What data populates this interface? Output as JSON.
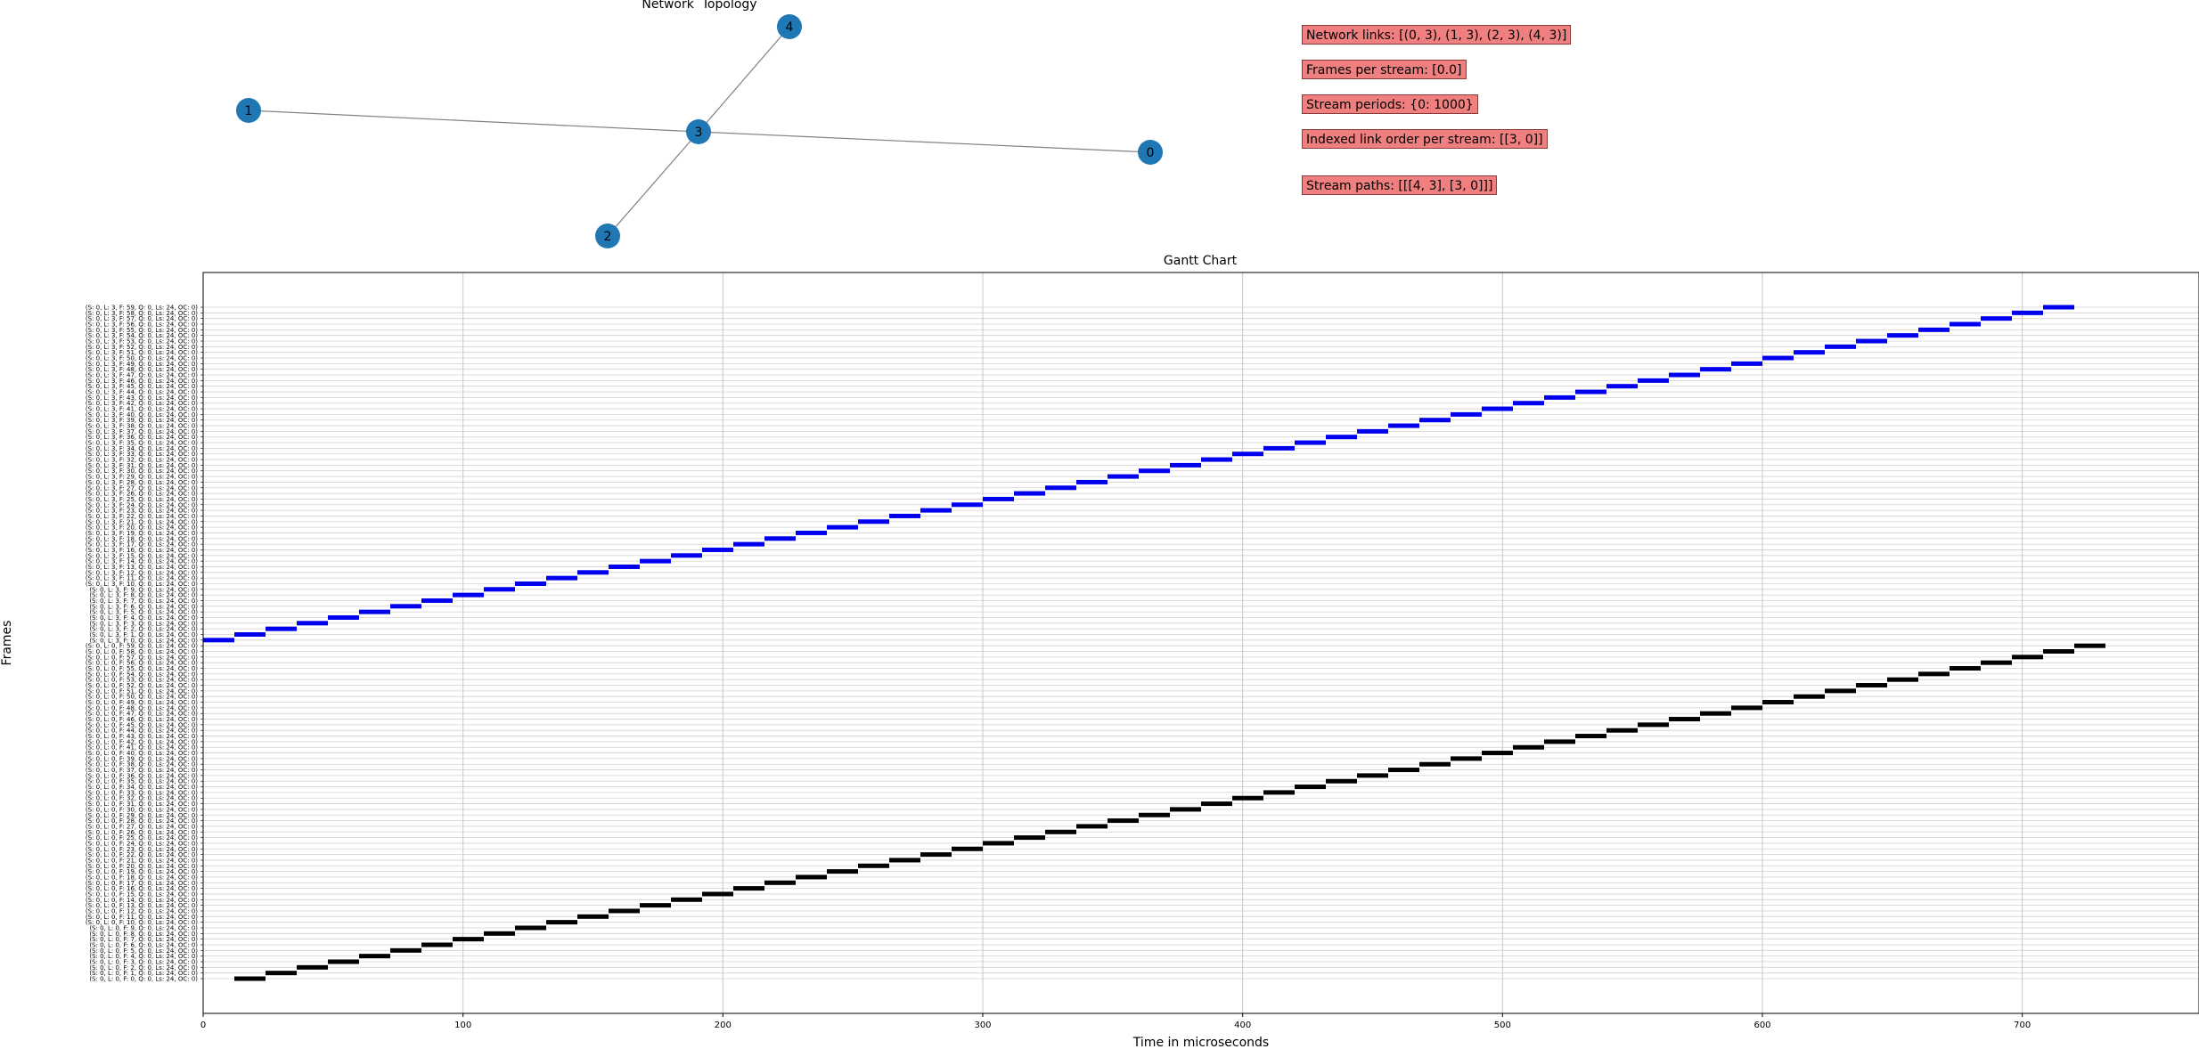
{
  "topology": {
    "title": "Network  Topology",
    "nodes": [
      "0",
      "1",
      "2",
      "3",
      "4"
    ],
    "edges": [
      [
        "0",
        "3"
      ],
      [
        "1",
        "3"
      ],
      [
        "2",
        "3"
      ],
      [
        "4",
        "3"
      ]
    ],
    "node_color": "#1f77b4",
    "edge_color": "#808080"
  },
  "info": {
    "links": "Network links: [(0, 3), (1, 3), (2, 3), (4, 3)]",
    "frames": "Frames per stream: [0.0]",
    "periods": "Stream periods: {0: 1000}",
    "link_order": "Indexed link order per stream:  [[3, 0]]",
    "paths": "Stream paths:  [[[4, 3], [3, 0]]]",
    "box_color": "#f08080"
  },
  "chart_data": {
    "type": "gantt",
    "title": "Gantt Chart",
    "xlabel": "Time in microseconds",
    "ylabel": "Frames",
    "xlim": [
      0,
      768
    ],
    "xticks": [
      0,
      100,
      200,
      300,
      400,
      500,
      600,
      700
    ],
    "grid": true,
    "row_label_template": "(S: 0, L: {link}, F: {frame}, Q: 0, Ls: 24, OC: 0)",
    "series": [
      {
        "link": 0,
        "color": "#000000",
        "frames": 60,
        "start": 12,
        "step": 12,
        "duration": 12
      },
      {
        "link": 3,
        "color": "#0000ee",
        "frames": 60,
        "start": 0,
        "step": 12,
        "duration": 12
      }
    ]
  }
}
